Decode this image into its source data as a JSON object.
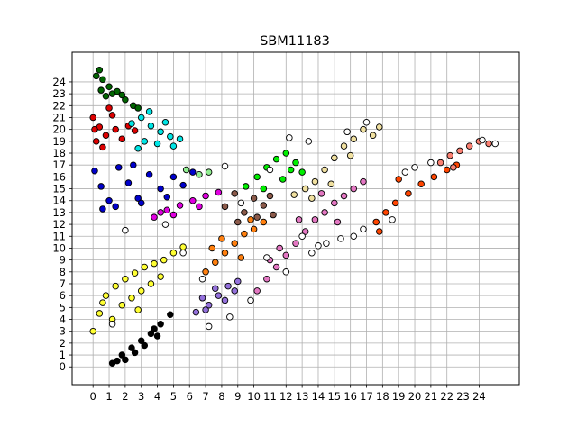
{
  "chart_data": {
    "type": "scatter",
    "title": "SBM11183",
    "xlabel": "",
    "ylabel": "",
    "xlim": [
      -1.3,
      26.5
    ],
    "ylim": [
      -1.5,
      26.5
    ],
    "xticks": [
      "0",
      "1",
      "2",
      "3",
      "4",
      "5",
      "6",
      "7",
      "8",
      "9",
      "10",
      "11",
      "12",
      "13",
      "14",
      "15",
      "16",
      "17",
      "18",
      "19",
      "20",
      "21",
      "22",
      "23",
      "24"
    ],
    "yticks": [
      "0",
      "1",
      "2",
      "3",
      "4",
      "5",
      "6",
      "7",
      "8",
      "9",
      "10",
      "11",
      "12",
      "13",
      "14",
      "15",
      "16",
      "17",
      "18",
      "19",
      "20",
      "21",
      "22",
      "23",
      "24"
    ],
    "grid": true,
    "legend": "none",
    "marker": "circle with black edge",
    "clusters": [
      {
        "color": "#006400",
        "points": [
          [
            0.2,
            24.5
          ],
          [
            0.4,
            25.0
          ],
          [
            0.6,
            24.2
          ],
          [
            1.0,
            23.6
          ],
          [
            1.5,
            23.2
          ],
          [
            2.0,
            22.5
          ],
          [
            2.5,
            22.0
          ],
          [
            1.2,
            23.0
          ],
          [
            0.8,
            22.8
          ],
          [
            2.8,
            21.8
          ],
          [
            1.8,
            22.9
          ],
          [
            0.5,
            23.3
          ]
        ]
      },
      {
        "color": "#dd0000",
        "points": [
          [
            0.0,
            21.0
          ],
          [
            0.4,
            20.2
          ],
          [
            0.8,
            19.5
          ],
          [
            1.2,
            21.2
          ],
          [
            0.2,
            19.0
          ],
          [
            0.6,
            18.5
          ],
          [
            1.4,
            20.0
          ],
          [
            2.2,
            20.3
          ],
          [
            2.6,
            19.9
          ],
          [
            1.0,
            21.8
          ],
          [
            0.1,
            20.0
          ],
          [
            1.8,
            19.2
          ]
        ]
      },
      {
        "color": "#00e5e5",
        "points": [
          [
            2.4,
            20.5
          ],
          [
            3.0,
            21.0
          ],
          [
            3.6,
            20.3
          ],
          [
            4.2,
            19.8
          ],
          [
            4.8,
            19.4
          ],
          [
            5.4,
            19.2
          ],
          [
            3.2,
            19.0
          ],
          [
            2.8,
            18.4
          ],
          [
            4.0,
            18.8
          ],
          [
            3.5,
            21.5
          ],
          [
            4.5,
            20.6
          ],
          [
            5.0,
            18.6
          ]
        ]
      },
      {
        "color": "#0000cc",
        "points": [
          [
            0.1,
            16.5
          ],
          [
            0.5,
            15.2
          ],
          [
            1.0,
            14.0
          ],
          [
            1.6,
            16.8
          ],
          [
            2.2,
            15.5
          ],
          [
            2.8,
            14.2
          ],
          [
            3.5,
            16.2
          ],
          [
            4.2,
            15.0
          ],
          [
            5.0,
            16.0
          ],
          [
            5.6,
            15.3
          ],
          [
            6.2,
            16.4
          ],
          [
            1.4,
            13.5
          ],
          [
            0.6,
            13.3
          ],
          [
            2.5,
            17.0
          ],
          [
            4.6,
            14.3
          ],
          [
            3.0,
            13.8
          ]
        ]
      },
      {
        "color": "#90ee90",
        "points": [
          [
            5.8,
            16.6
          ],
          [
            6.6,
            16.2
          ],
          [
            7.2,
            16.4
          ]
        ]
      },
      {
        "color": "#e000e0",
        "points": [
          [
            3.8,
            12.6
          ],
          [
            4.6,
            13.2
          ],
          [
            5.4,
            13.6
          ],
          [
            6.2,
            14.0
          ],
          [
            7.0,
            14.4
          ],
          [
            7.8,
            14.7
          ],
          [
            5.0,
            12.8
          ],
          [
            6.6,
            13.5
          ],
          [
            4.2,
            13.0
          ]
        ]
      },
      {
        "color": "#00ee00",
        "points": [
          [
            9.5,
            15.2
          ],
          [
            10.2,
            16.0
          ],
          [
            10.8,
            16.8
          ],
          [
            11.4,
            17.5
          ],
          [
            12.0,
            18.0
          ],
          [
            12.6,
            17.2
          ],
          [
            13.0,
            16.4
          ],
          [
            11.8,
            15.8
          ],
          [
            10.6,
            15.0
          ],
          [
            12.3,
            16.6
          ]
        ]
      },
      {
        "color": "#f0e0a0",
        "points": [
          [
            12.5,
            14.5
          ],
          [
            13.2,
            15.0
          ],
          [
            13.8,
            15.6
          ],
          [
            14.4,
            16.6
          ],
          [
            15.0,
            17.6
          ],
          [
            15.6,
            18.6
          ],
          [
            16.2,
            19.2
          ],
          [
            16.8,
            20.0
          ],
          [
            17.4,
            19.5
          ],
          [
            16.0,
            17.8
          ],
          [
            14.8,
            15.4
          ],
          [
            13.6,
            14.2
          ],
          [
            17.8,
            20.2
          ]
        ]
      },
      {
        "color": "#ffff33",
        "points": [
          [
            0.0,
            3.0
          ],
          [
            0.4,
            4.5
          ],
          [
            0.8,
            6.0
          ],
          [
            1.4,
            6.8
          ],
          [
            2.0,
            7.4
          ],
          [
            2.6,
            7.9
          ],
          [
            3.2,
            8.4
          ],
          [
            3.8,
            8.7
          ],
          [
            4.4,
            9.0
          ],
          [
            5.0,
            9.6
          ],
          [
            5.6,
            10.1
          ],
          [
            1.8,
            5.2
          ],
          [
            2.4,
            5.8
          ],
          [
            3.0,
            6.4
          ],
          [
            3.6,
            7.0
          ],
          [
            1.2,
            4.0
          ],
          [
            4.2,
            7.6
          ],
          [
            2.8,
            4.8
          ],
          [
            0.6,
            5.4
          ]
        ]
      },
      {
        "color": "#000000",
        "points": [
          [
            1.2,
            0.3
          ],
          [
            1.8,
            1.0
          ],
          [
            2.4,
            1.6
          ],
          [
            3.0,
            2.2
          ],
          [
            3.6,
            2.8
          ],
          [
            4.2,
            3.6
          ],
          [
            4.8,
            4.4
          ],
          [
            2.0,
            0.6
          ],
          [
            2.6,
            1.2
          ],
          [
            3.2,
            1.8
          ],
          [
            4.0,
            2.6
          ],
          [
            1.5,
            0.5
          ],
          [
            3.8,
            3.2
          ]
        ]
      },
      {
        "color": "#9370db",
        "points": [
          [
            6.4,
            4.6
          ],
          [
            7.2,
            5.2
          ],
          [
            7.8,
            6.0
          ],
          [
            8.4,
            6.8
          ],
          [
            9.0,
            7.2
          ],
          [
            7.0,
            4.8
          ],
          [
            8.2,
            5.6
          ],
          [
            6.8,
            5.8
          ],
          [
            8.8,
            6.4
          ],
          [
            7.6,
            6.6
          ]
        ]
      },
      {
        "color": "#ff7f0e",
        "points": [
          [
            7.0,
            8.0
          ],
          [
            7.6,
            8.8
          ],
          [
            8.2,
            9.6
          ],
          [
            8.8,
            10.4
          ],
          [
            9.4,
            11.2
          ],
          [
            10.0,
            11.6
          ],
          [
            10.6,
            12.2
          ],
          [
            8.0,
            10.8
          ],
          [
            9.2,
            9.2
          ],
          [
            7.4,
            10.0
          ],
          [
            9.8,
            12.4
          ]
        ]
      },
      {
        "color": "#8b5a4a",
        "points": [
          [
            8.2,
            13.5
          ],
          [
            8.8,
            14.6
          ],
          [
            9.4,
            13.0
          ],
          [
            10.0,
            14.2
          ],
          [
            10.6,
            13.6
          ],
          [
            11.2,
            12.8
          ],
          [
            9.0,
            12.2
          ],
          [
            10.2,
            12.6
          ],
          [
            11.0,
            14.4
          ]
        ]
      },
      {
        "color": "#e377c2",
        "points": [
          [
            10.2,
            6.4
          ],
          [
            10.8,
            7.4
          ],
          [
            11.4,
            8.4
          ],
          [
            12.0,
            9.4
          ],
          [
            12.6,
            10.4
          ],
          [
            13.2,
            11.4
          ],
          [
            13.8,
            12.4
          ],
          [
            14.4,
            13.0
          ],
          [
            15.0,
            13.8
          ],
          [
            15.6,
            14.4
          ],
          [
            16.2,
            15.0
          ],
          [
            16.8,
            15.6
          ],
          [
            11.6,
            10.0
          ],
          [
            12.8,
            12.4
          ],
          [
            14.2,
            14.6
          ],
          [
            15.2,
            12.2
          ],
          [
            11.0,
            9.0
          ]
        ]
      },
      {
        "color": "#ff4500",
        "points": [
          [
            17.6,
            12.2
          ],
          [
            18.2,
            13.0
          ],
          [
            18.8,
            13.8
          ],
          [
            19.6,
            14.6
          ],
          [
            20.4,
            15.4
          ],
          [
            21.2,
            16.0
          ],
          [
            22.0,
            16.6
          ],
          [
            22.6,
            17.0
          ],
          [
            19.0,
            15.8
          ],
          [
            17.8,
            11.4
          ]
        ]
      },
      {
        "color": "#fa8072",
        "points": [
          [
            21.6,
            17.2
          ],
          [
            22.2,
            17.8
          ],
          [
            22.8,
            18.2
          ],
          [
            23.4,
            18.6
          ],
          [
            24.0,
            19.0
          ],
          [
            24.6,
            18.8
          ],
          [
            22.4,
            16.8
          ]
        ]
      },
      {
        "color": "#ffffff",
        "points": [
          [
            12.2,
            19.3
          ],
          [
            13.4,
            19.0
          ],
          [
            11.0,
            16.6
          ],
          [
            14.5,
            10.4
          ],
          [
            13.6,
            9.6
          ],
          [
            15.4,
            10.8
          ],
          [
            16.2,
            11.0
          ],
          [
            16.8,
            11.6
          ],
          [
            9.8,
            5.6
          ],
          [
            10.8,
            9.2
          ],
          [
            12.0,
            8.0
          ],
          [
            13.0,
            11.0
          ],
          [
            14.0,
            10.2
          ],
          [
            2.0,
            11.5
          ],
          [
            4.5,
            12.0
          ],
          [
            8.5,
            4.2
          ],
          [
            7.2,
            3.4
          ],
          [
            1.2,
            3.6
          ],
          [
            6.8,
            7.4
          ],
          [
            19.4,
            16.4
          ],
          [
            20.0,
            16.8
          ],
          [
            21.0,
            17.2
          ],
          [
            24.2,
            19.1
          ],
          [
            25.0,
            18.8
          ],
          [
            9.2,
            13.8
          ],
          [
            15.8,
            19.8
          ],
          [
            17.0,
            20.6
          ],
          [
            5.6,
            9.6
          ],
          [
            8.2,
            16.9
          ],
          [
            18.6,
            12.4
          ]
        ]
      }
    ]
  }
}
